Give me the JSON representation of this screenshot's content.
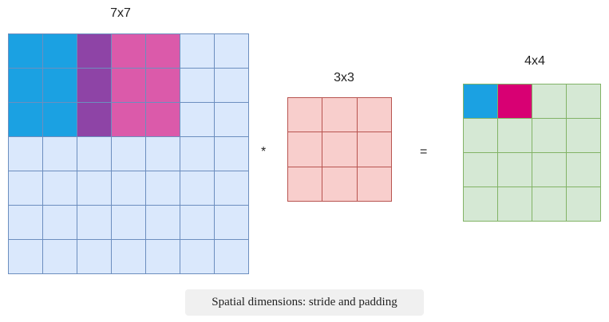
{
  "input_grid": {
    "label": "7x7",
    "size": 7,
    "base_color": "#dae8fc",
    "highlights": [
      {
        "row": 0,
        "col": 0,
        "color": "#1ba1e2"
      },
      {
        "row": 0,
        "col": 1,
        "color": "#1ba1e2"
      },
      {
        "row": 0,
        "col": 2,
        "color": "#8e44a6"
      },
      {
        "row": 0,
        "col": 3,
        "color": "#db5aaa"
      },
      {
        "row": 0,
        "col": 4,
        "color": "#db5aaa"
      },
      {
        "row": 1,
        "col": 0,
        "color": "#1ba1e2"
      },
      {
        "row": 1,
        "col": 1,
        "color": "#1ba1e2"
      },
      {
        "row": 1,
        "col": 2,
        "color": "#8e44a6"
      },
      {
        "row": 1,
        "col": 3,
        "color": "#db5aaa"
      },
      {
        "row": 1,
        "col": 4,
        "color": "#db5aaa"
      },
      {
        "row": 2,
        "col": 0,
        "color": "#1ba1e2"
      },
      {
        "row": 2,
        "col": 1,
        "color": "#1ba1e2"
      },
      {
        "row": 2,
        "col": 2,
        "color": "#8e44a6"
      },
      {
        "row": 2,
        "col": 3,
        "color": "#db5aaa"
      },
      {
        "row": 2,
        "col": 4,
        "color": "#db5aaa"
      }
    ]
  },
  "kernel_grid": {
    "label": "3x3",
    "size": 3,
    "base_color": "#f8cecc",
    "highlights": []
  },
  "output_grid": {
    "label": "4x4",
    "size": 4,
    "base_color": "#d5e8d4",
    "highlights": [
      {
        "row": 0,
        "col": 0,
        "color": "#1ba1e2"
      },
      {
        "row": 0,
        "col": 1,
        "color": "#d80073"
      }
    ]
  },
  "operators": {
    "multiply": "*",
    "equals": "="
  },
  "caption": "Spatial dimensions: stride and padding"
}
